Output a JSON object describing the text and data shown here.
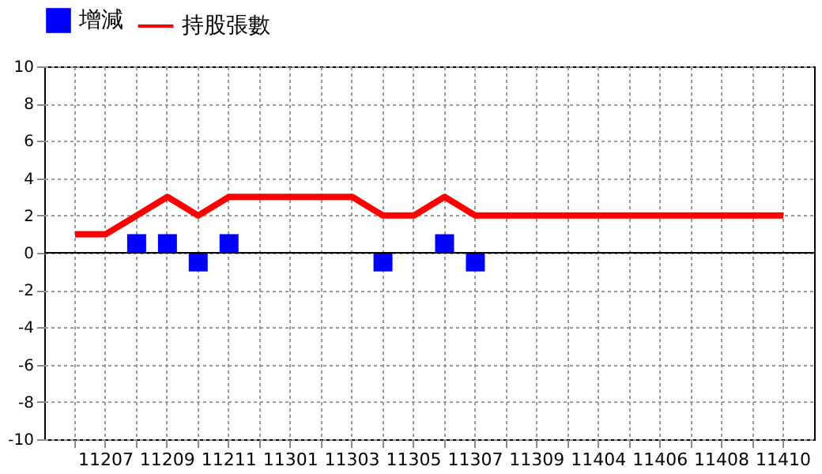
{
  "chart_data": {
    "type": "bar",
    "categories": [
      null,
      "11207",
      null,
      "11209",
      null,
      "11211",
      null,
      "11301",
      null,
      "11303",
      null,
      "11305",
      null,
      "11307",
      null,
      "11309",
      null,
      "11404",
      null,
      "11406",
      null,
      "11408",
      null,
      "11410"
    ],
    "series": [
      {
        "name": "增減",
        "color": "#0000ff",
        "values": [
          null,
          null,
          1,
          1,
          -1,
          1,
          null,
          null,
          null,
          null,
          -1,
          null,
          1,
          -1,
          null,
          null,
          null,
          null,
          null,
          null,
          null,
          null,
          null,
          null
        ]
      },
      {
        "name": "持股張數",
        "type": "line",
        "color": "#ff0000",
        "values": [
          1,
          1,
          2,
          3,
          2,
          3,
          3,
          3,
          3,
          3,
          2,
          2,
          3,
          2,
          2,
          2,
          2,
          2,
          2,
          2,
          2,
          2,
          2,
          2
        ]
      }
    ],
    "ylim": [
      -10,
      10
    ],
    "yticks": [
      -10,
      -8,
      -6,
      -4,
      -2,
      0,
      2,
      4,
      6,
      8,
      10
    ],
    "grid": true,
    "legend": "top",
    "marker": "none",
    "line_style": "solid",
    "ref_lines": [
      {
        "axis": "y",
        "value": 0,
        "color": "#000000"
      }
    ]
  }
}
